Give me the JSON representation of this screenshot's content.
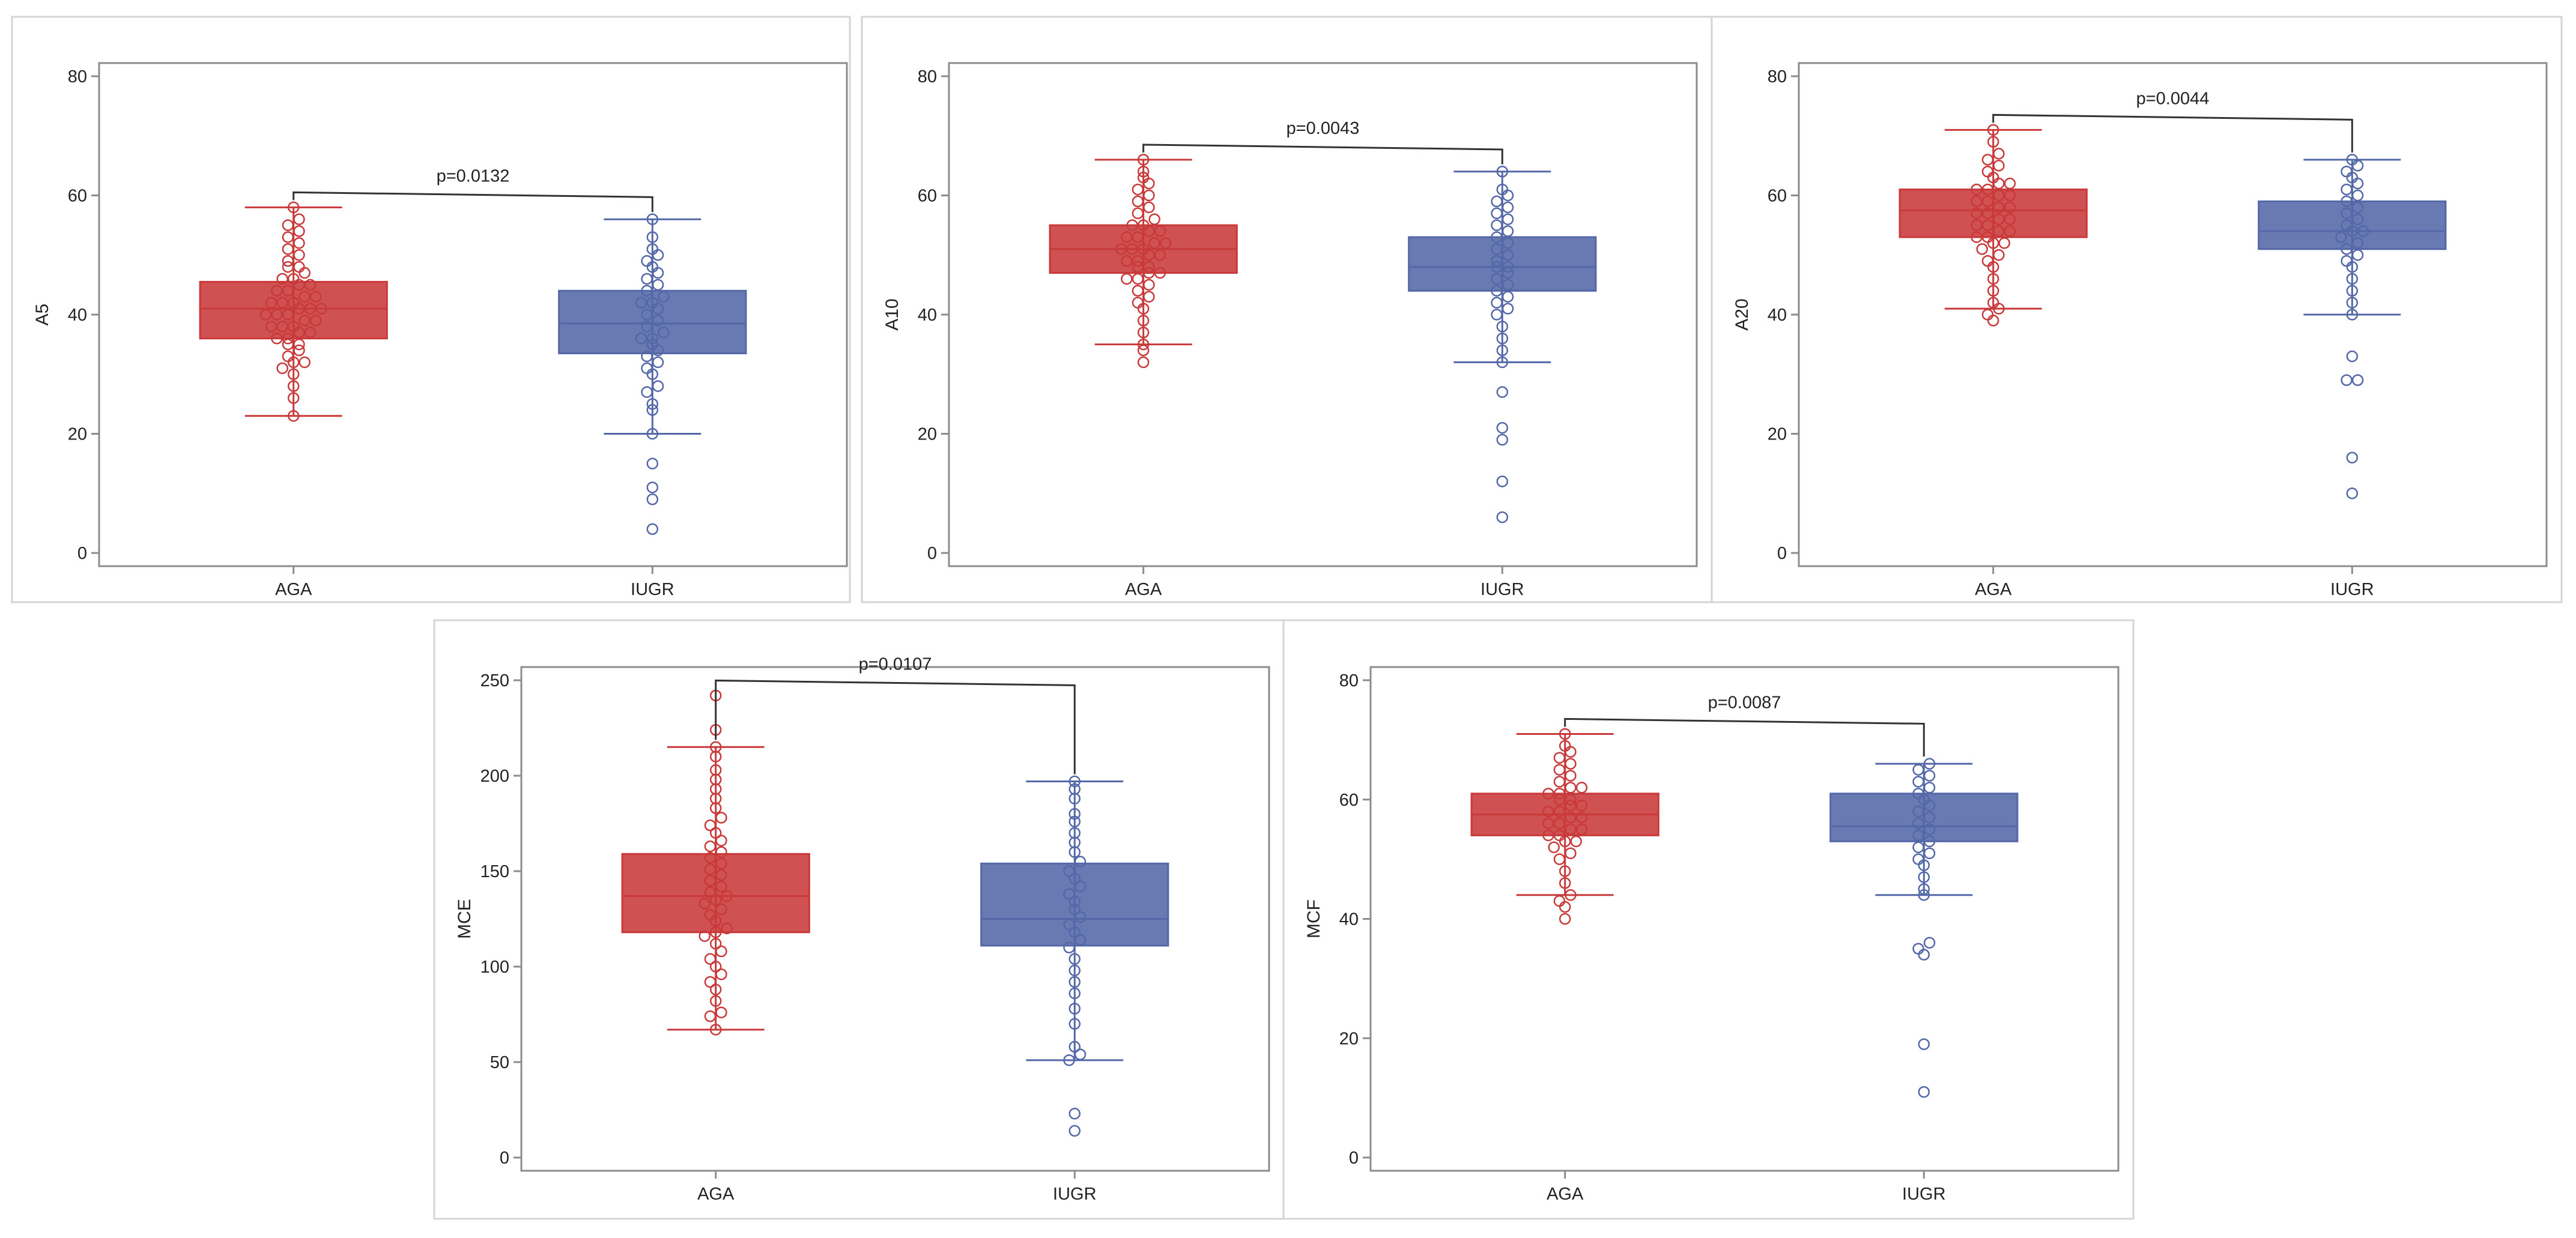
{
  "chart_data": [
    {
      "type": "box",
      "ylabel": "A5",
      "ylim": [
        0,
        80
      ],
      "yticks": [
        0,
        20,
        40,
        60,
        80
      ],
      "categories": [
        "AGA",
        "IUGR"
      ],
      "annotation": "p=0.0132",
      "series": [
        {
          "category": "AGA",
          "color": "#c9393a",
          "whisker_low": 23,
          "q1": 36,
          "median": 41,
          "q3": 45.5,
          "whisker_high": 58,
          "points": [
            23,
            26,
            28,
            30,
            31,
            32,
            32,
            33,
            34,
            35,
            35,
            36,
            36,
            37,
            37,
            38,
            38,
            38,
            39,
            39,
            40,
            40,
            40,
            41,
            41,
            41,
            42,
            42,
            42,
            43,
            43,
            44,
            44,
            45,
            45,
            46,
            46,
            47,
            48,
            48,
            49,
            50,
            51,
            52,
            53,
            54,
            55,
            56,
            58
          ]
        },
        {
          "category": "IUGR",
          "color": "#5468a8",
          "whisker_low": 20,
          "q1": 33.5,
          "median": 38.5,
          "q3": 44,
          "whisker_high": 56,
          "points": [
            4,
            9,
            11,
            15,
            20,
            24,
            25,
            27,
            28,
            30,
            31,
            32,
            33,
            34,
            35,
            36,
            36,
            37,
            38,
            39,
            40,
            41,
            42,
            42,
            43,
            44,
            45,
            46,
            47,
            48,
            49,
            50,
            51,
            53,
            56
          ]
        }
      ]
    },
    {
      "type": "box",
      "ylabel": "A10",
      "ylim": [
        0,
        80
      ],
      "yticks": [
        0,
        20,
        40,
        60,
        80
      ],
      "categories": [
        "AGA",
        "IUGR"
      ],
      "annotation": "p=0.0043",
      "series": [
        {
          "category": "AGA",
          "color": "#c9393a",
          "whisker_low": 35,
          "q1": 47,
          "median": 51,
          "q3": 55,
          "whisker_high": 66,
          "points": [
            32,
            34,
            35,
            37,
            39,
            41,
            42,
            43,
            44,
            45,
            46,
            46,
            47,
            47,
            48,
            48,
            49,
            49,
            50,
            50,
            51,
            51,
            51,
            52,
            52,
            53,
            53,
            54,
            54,
            55,
            55,
            56,
            57,
            58,
            59,
            60,
            61,
            62,
            63,
            64,
            66
          ]
        },
        {
          "category": "IUGR",
          "color": "#5468a8",
          "whisker_low": 32,
          "q1": 44,
          "median": 48,
          "q3": 53,
          "whisker_high": 64,
          "points": [
            6,
            12,
            19,
            21,
            27,
            32,
            34,
            36,
            38,
            40,
            41,
            42,
            43,
            44,
            45,
            46,
            47,
            48,
            48,
            49,
            50,
            51,
            52,
            53,
            54,
            55,
            56,
            57,
            58,
            59,
            60,
            61,
            64
          ]
        }
      ]
    },
    {
      "type": "box",
      "ylabel": "A20",
      "ylim": [
        0,
        80
      ],
      "yticks": [
        0,
        20,
        40,
        60,
        80
      ],
      "categories": [
        "AGA",
        "IUGR"
      ],
      "annotation": "p=0.0044",
      "series": [
        {
          "category": "AGA",
          "color": "#c9393a",
          "whisker_low": 41,
          "q1": 53,
          "median": 57.5,
          "q3": 61,
          "whisker_high": 71,
          "points": [
            39,
            40,
            41,
            42,
            44,
            46,
            48,
            49,
            50,
            51,
            52,
            52,
            53,
            53,
            54,
            54,
            55,
            55,
            56,
            56,
            57,
            57,
            58,
            58,
            59,
            59,
            60,
            60,
            61,
            61,
            62,
            62,
            63,
            64,
            65,
            66,
            67,
            69,
            71
          ]
        },
        {
          "category": "IUGR",
          "color": "#5468a8",
          "whisker_low": 40,
          "q1": 51,
          "median": 54,
          "q3": 59,
          "whisker_high": 66,
          "points": [
            10,
            16,
            29,
            29,
            33,
            40,
            42,
            44,
            46,
            48,
            49,
            50,
            51,
            52,
            53,
            54,
            54,
            55,
            56,
            57,
            58,
            59,
            60,
            61,
            62,
            63,
            64,
            65,
            66
          ]
        }
      ]
    },
    {
      "type": "box",
      "ylabel": "MCE",
      "ylim": [
        0,
        250
      ],
      "yticks": [
        0,
        50,
        100,
        150,
        200,
        250
      ],
      "categories": [
        "AGA",
        "IUGR"
      ],
      "annotation": "p=0.0107",
      "series": [
        {
          "category": "AGA",
          "color": "#c9393a",
          "whisker_low": 67,
          "q1": 118,
          "median": 137,
          "q3": 159,
          "whisker_high": 215,
          "points": [
            67,
            74,
            76,
            82,
            88,
            92,
            96,
            100,
            104,
            108,
            112,
            116,
            118,
            120,
            124,
            127,
            130,
            133,
            135,
            137,
            139,
            142,
            145,
            148,
            151,
            154,
            157,
            160,
            163,
            166,
            170,
            174,
            178,
            183,
            188,
            193,
            198,
            203,
            210,
            215,
            224,
            242
          ]
        },
        {
          "category": "IUGR",
          "color": "#5468a8",
          "whisker_low": 51,
          "q1": 111,
          "median": 125,
          "q3": 154,
          "whisker_high": 197,
          "points": [
            14,
            23,
            51,
            54,
            58,
            70,
            78,
            86,
            92,
            98,
            104,
            110,
            114,
            118,
            122,
            126,
            130,
            134,
            138,
            142,
            146,
            150,
            155,
            160,
            165,
            170,
            176,
            180,
            188,
            193,
            197
          ]
        }
      ]
    },
    {
      "type": "box",
      "ylabel": "MCF",
      "ylim": [
        0,
        80
      ],
      "yticks": [
        0,
        20,
        40,
        60,
        80
      ],
      "categories": [
        "AGA",
        "IUGR"
      ],
      "annotation": "p=0.0087",
      "series": [
        {
          "category": "AGA",
          "color": "#c9393a",
          "whisker_low": 44,
          "q1": 54,
          "median": 57.5,
          "q3": 61,
          "whisker_high": 71,
          "points": [
            40,
            42,
            43,
            44,
            46,
            48,
            50,
            51,
            52,
            53,
            53,
            54,
            54,
            55,
            55,
            56,
            56,
            57,
            57,
            58,
            58,
            59,
            59,
            60,
            60,
            61,
            61,
            62,
            62,
            63,
            64,
            65,
            66,
            67,
            68,
            69,
            71
          ]
        },
        {
          "category": "IUGR",
          "color": "#5468a8",
          "whisker_low": 44,
          "q1": 53,
          "median": 55.5,
          "q3": 61,
          "whisker_high": 66,
          "points": [
            11,
            19,
            34,
            35,
            36,
            44,
            45,
            47,
            49,
            50,
            51,
            52,
            53,
            54,
            55,
            56,
            57,
            58,
            59,
            60,
            61,
            62,
            63,
            64,
            65,
            66
          ]
        }
      ]
    }
  ]
}
